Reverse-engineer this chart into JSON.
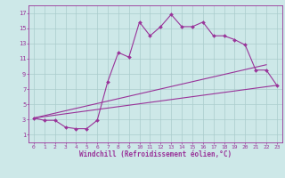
{
  "bg_color": "#cde8e8",
  "line_color": "#993399",
  "grid_color": "#aacccc",
  "xlabel": "Windchill (Refroidissement éolien,°C)",
  "xlabel_color": "#993399",
  "tick_color": "#993399",
  "xlim": [
    -0.5,
    23.5
  ],
  "ylim": [
    0,
    18
  ],
  "yticks": [
    1,
    3,
    5,
    7,
    9,
    11,
    13,
    15,
    17
  ],
  "xticks": [
    0,
    1,
    2,
    3,
    4,
    5,
    6,
    7,
    8,
    9,
    10,
    11,
    12,
    13,
    14,
    15,
    16,
    17,
    18,
    19,
    20,
    21,
    22,
    23
  ],
  "line1_x": [
    0,
    1,
    2,
    3,
    4,
    5,
    6,
    7,
    8,
    9,
    10,
    11,
    12,
    13,
    14,
    15,
    16,
    17,
    18,
    19,
    20,
    21,
    22,
    23
  ],
  "line1_y": [
    3.2,
    2.9,
    2.9,
    2.0,
    1.8,
    1.8,
    2.9,
    8.0,
    11.8,
    11.2,
    15.8,
    14.0,
    15.2,
    16.8,
    15.2,
    15.2,
    15.8,
    14.0,
    14.0,
    13.5,
    12.8,
    9.5,
    9.5,
    7.5
  ],
  "line2_x": [
    0,
    22
  ],
  "line2_y": [
    3.2,
    10.2
  ],
  "line3_x": [
    0,
    22
  ],
  "line3_y": [
    3.2,
    7.5
  ],
  "line4_x": [
    0,
    23
  ],
  "line4_y": [
    3.2,
    7.5
  ],
  "marker": "D",
  "marker_size": 2.0,
  "linewidth": 0.8,
  "font_family": "monospace"
}
